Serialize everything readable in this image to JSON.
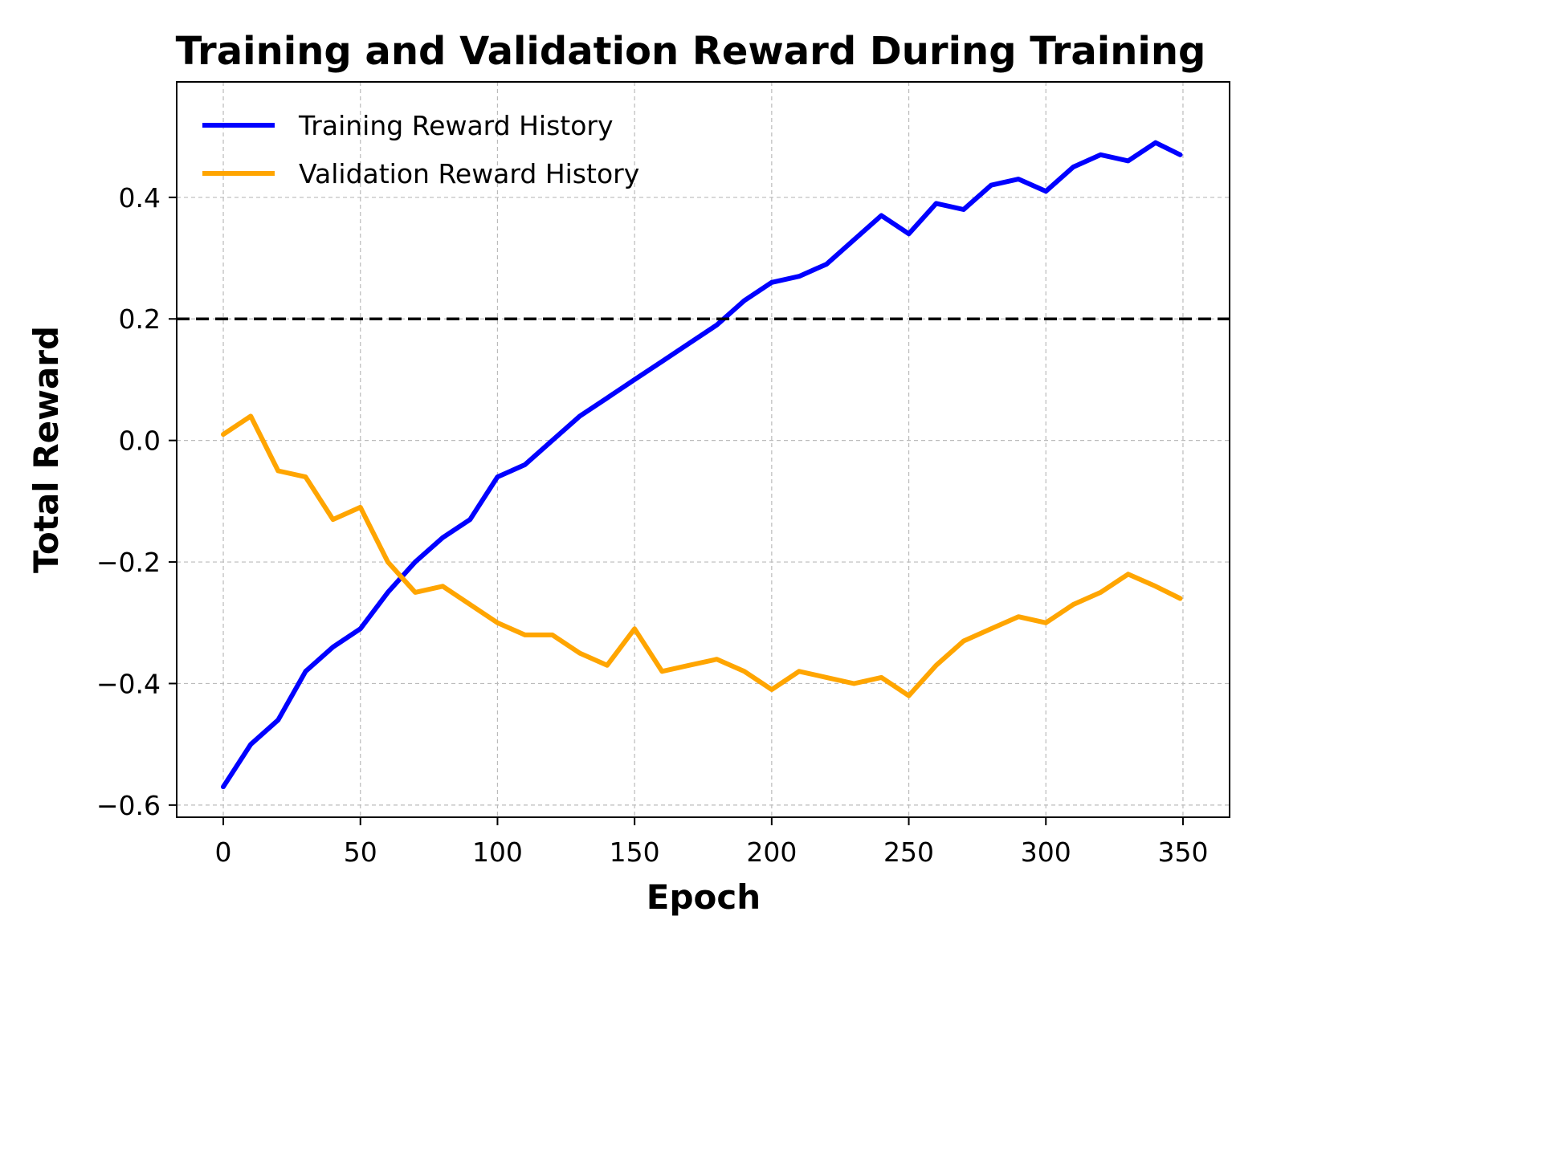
{
  "chart_data": {
    "type": "line",
    "title": "Training and Validation Reward During Training",
    "xlabel": "Epoch",
    "ylabel": "Total Reward",
    "xlim": [
      -17,
      367
    ],
    "ylim": [
      -0.62,
      0.59
    ],
    "xticks": [
      0,
      50,
      100,
      150,
      200,
      250,
      300,
      350
    ],
    "yticks": [
      -0.6,
      -0.4,
      -0.2,
      0.0,
      0.2,
      0.4
    ],
    "xtick_labels": [
      "0",
      "50",
      "100",
      "150",
      "200",
      "250",
      "300",
      "350"
    ],
    "ytick_labels": [
      "−0.6",
      "−0.4",
      "−0.2",
      "0.0",
      "0.2",
      "0.4"
    ],
    "grid": true,
    "legend_position": "top-left",
    "reference_line": {
      "y": 0.2,
      "style": "dashed",
      "color": "#000000"
    },
    "x": [
      0,
      10,
      20,
      30,
      40,
      50,
      60,
      70,
      80,
      90,
      100,
      110,
      120,
      130,
      140,
      150,
      160,
      170,
      180,
      190,
      200,
      210,
      220,
      230,
      240,
      250,
      260,
      270,
      280,
      290,
      300,
      310,
      320,
      330,
      340,
      349
    ],
    "series": [
      {
        "name": "Training Reward History",
        "color": "#0000ff",
        "values": [
          -0.57,
          -0.5,
          -0.46,
          -0.38,
          -0.34,
          -0.31,
          -0.25,
          -0.2,
          -0.16,
          -0.13,
          -0.06,
          -0.04,
          0.0,
          0.04,
          0.07,
          0.1,
          0.13,
          0.16,
          0.19,
          0.23,
          0.26,
          0.27,
          0.29,
          0.33,
          0.37,
          0.34,
          0.39,
          0.38,
          0.42,
          0.43,
          0.41,
          0.45,
          0.47,
          0.46,
          0.49,
          0.47
        ]
      },
      {
        "name": "Validation Reward History",
        "color": "#ffa500",
        "values": [
          0.01,
          0.04,
          -0.05,
          -0.06,
          -0.13,
          -0.11,
          -0.2,
          -0.25,
          -0.24,
          -0.27,
          -0.3,
          -0.32,
          -0.32,
          -0.35,
          -0.37,
          -0.31,
          -0.38,
          -0.37,
          -0.36,
          -0.38,
          -0.41,
          -0.38,
          -0.39,
          -0.4,
          -0.39,
          -0.42,
          -0.37,
          -0.33,
          -0.31,
          -0.29,
          -0.3,
          -0.27,
          -0.25,
          -0.22,
          -0.24,
          -0.26
        ]
      }
    ]
  }
}
